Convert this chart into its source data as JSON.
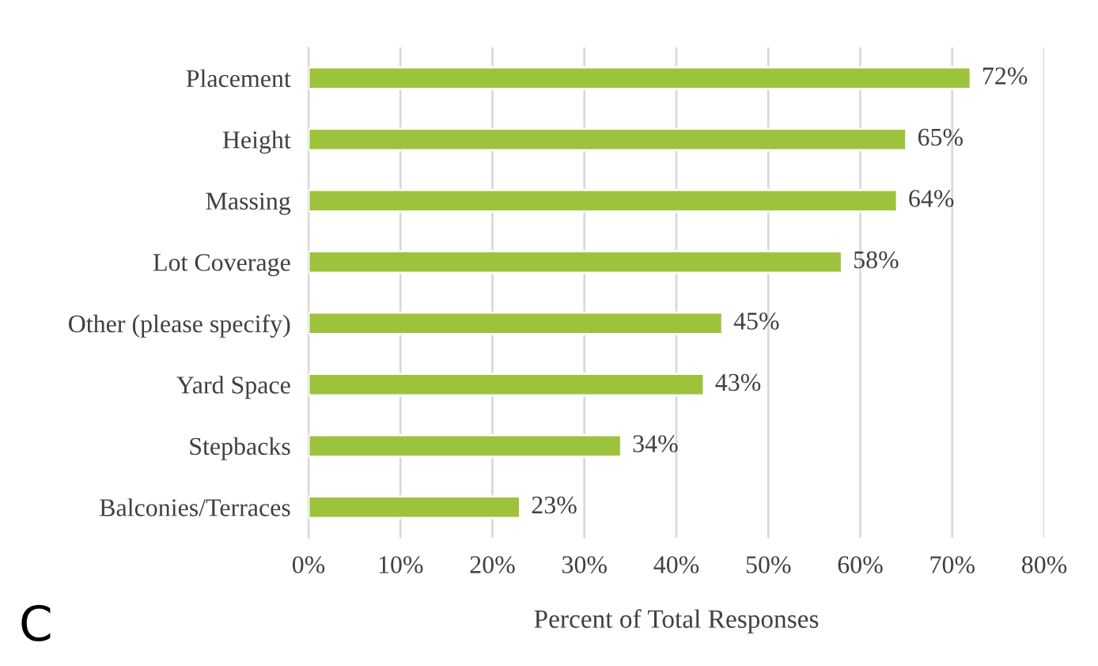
{
  "chart_data": {
    "type": "bar",
    "orientation": "horizontal",
    "categories": [
      "Placement",
      "Height",
      "Massing",
      "Lot Coverage",
      "Other (please specify)",
      "Yard Space",
      "Stepbacks",
      "Balconies/Terraces"
    ],
    "values": [
      72,
      65,
      64,
      58,
      45,
      43,
      34,
      23
    ],
    "value_labels": [
      "72%",
      "65%",
      "64%",
      "58%",
      "45%",
      "43%",
      "34%",
      "23%"
    ],
    "color": "#9dc33c",
    "xlabel": "Percent of Total Responses",
    "xlim": [
      0,
      80
    ],
    "xticks": [
      {
        "value": 0,
        "label": "0%"
      },
      {
        "value": 10,
        "label": "10%"
      },
      {
        "value": 20,
        "label": "20%"
      },
      {
        "value": 30,
        "label": "30%"
      },
      {
        "value": 40,
        "label": "40%"
      },
      {
        "value": 50,
        "label": "50%"
      },
      {
        "value": 60,
        "label": "60%"
      },
      {
        "value": 70,
        "label": "70%"
      },
      {
        "value": 80,
        "label": "80%"
      }
    ],
    "grid": "x",
    "annotations": [
      "C"
    ]
  }
}
